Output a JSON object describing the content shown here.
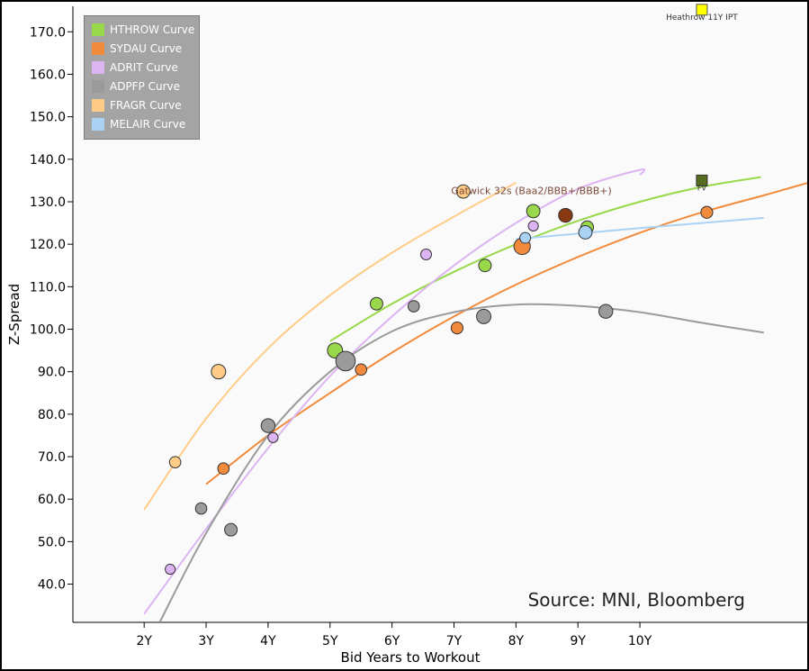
{
  "chart_data": {
    "type": "scatter",
    "xlabel": "Bid Years to Workout",
    "ylabel": "Z-Spread",
    "xlim": [
      0.85,
      12.7
    ],
    "ylim": [
      31,
      176
    ],
    "x_ticks": [
      2,
      3,
      4,
      5,
      6,
      7,
      8,
      9,
      10
    ],
    "x_tick_labels": [
      "2Y",
      "3Y",
      "4Y",
      "5Y",
      "6Y",
      "7Y",
      "8Y",
      "9Y",
      "10Y"
    ],
    "y_ticks": [
      40,
      50,
      60,
      70,
      80,
      90,
      100,
      110,
      120,
      130,
      140,
      150,
      160,
      170
    ],
    "y_tick_labels": [
      "40.0",
      "50.0",
      "60.0",
      "70.0",
      "80.0",
      "90.0",
      "100.0",
      "110.0",
      "120.0",
      "130.0",
      "140.0",
      "150.0",
      "160.0",
      "170.0"
    ],
    "legend_position": "top-left",
    "source_note": "Source: MNI, Bloomberg",
    "series": [
      {
        "name": "HTHROW Curve",
        "color": "#99d84a",
        "points": [
          {
            "x": 5.08,
            "y": 95.0,
            "s": 1.2
          },
          {
            "x": 5.75,
            "y": 106.0,
            "s": 1
          },
          {
            "x": 7.5,
            "y": 115.0,
            "s": 1
          },
          {
            "x": 8.28,
            "y": 127.8,
            "s": 1.05
          },
          {
            "x": 9.15,
            "y": 124.0,
            "s": 1
          }
        ],
        "curve": [
          [
            5.0,
            97.2
          ],
          [
            6.0,
            106
          ],
          [
            7.0,
            113.5
          ],
          [
            8.0,
            120
          ],
          [
            9.0,
            125.5
          ],
          [
            10.0,
            130
          ],
          [
            11.0,
            133.5
          ],
          [
            11.95,
            135.8
          ]
        ]
      },
      {
        "name": "SYDAU Curve",
        "color": "#f28a3c",
        "points": [
          {
            "x": 3.28,
            "y": 67.2,
            "s": 0.9
          },
          {
            "x": 5.5,
            "y": 90.5,
            "s": 0.9
          },
          {
            "x": 7.05,
            "y": 100.3,
            "s": 0.95
          },
          {
            "x": 8.1,
            "y": 119.5,
            "s": 1.3
          },
          {
            "x": 11.08,
            "y": 127.5,
            "s": 0.95
          }
        ],
        "curve": [
          [
            3.0,
            63.5
          ],
          [
            4.0,
            75
          ],
          [
            5.0,
            85
          ],
          [
            6.0,
            94.5
          ],
          [
            7.0,
            103
          ],
          [
            8.0,
            110.5
          ],
          [
            9.0,
            117
          ],
          [
            10.0,
            122.7
          ],
          [
            11.0,
            127.5
          ],
          [
            12.0,
            131.5
          ],
          [
            12.7,
            134.4
          ]
        ]
      },
      {
        "name": "ADRIT Curve",
        "color": "#dcb4f2",
        "points": [
          {
            "x": 2.42,
            "y": 43.5,
            "s": 0.8
          },
          {
            "x": 4.08,
            "y": 74.5,
            "s": 0.8
          },
          {
            "x": 6.55,
            "y": 117.6,
            "s": 0.85
          },
          {
            "x": 8.28,
            "y": 124.3,
            "s": 0.8
          }
        ],
        "curve": [
          [
            2.0,
            33
          ],
          [
            3.0,
            53
          ],
          [
            4.0,
            72
          ],
          [
            5.0,
            89
          ],
          [
            6.0,
            103
          ],
          [
            7.0,
            115
          ],
          [
            8.0,
            125
          ],
          [
            9.0,
            133
          ],
          [
            10.0,
            137.5
          ],
          [
            10.0,
            136.3
          ]
        ]
      },
      {
        "name": "ADPFP Curve",
        "color": "#9b9b9b",
        "points": [
          {
            "x": 2.92,
            "y": 57.8,
            "s": 0.9
          },
          {
            "x": 3.4,
            "y": 52.8,
            "s": 1
          },
          {
            "x": 4.0,
            "y": 77.3,
            "s": 1.1
          },
          {
            "x": 5.25,
            "y": 92.5,
            "s": 1.55
          },
          {
            "x": 6.35,
            "y": 105.4,
            "s": 0.9
          },
          {
            "x": 7.48,
            "y": 103.0,
            "s": 1.15
          },
          {
            "x": 9.45,
            "y": 104.2,
            "s": 1.1
          }
        ],
        "curve": [
          [
            2.25,
            31
          ],
          [
            3.0,
            52
          ],
          [
            4.0,
            75
          ],
          [
            5.0,
            90
          ],
          [
            6.0,
            99.5
          ],
          [
            7.0,
            104
          ],
          [
            8.0,
            105.8
          ],
          [
            9.0,
            105.5
          ],
          [
            10.0,
            104
          ],
          [
            11.0,
            101.5
          ],
          [
            12.0,
            99.2
          ]
        ]
      },
      {
        "name": "FRAGR Curve",
        "color": "#ffcc88",
        "points": [
          {
            "x": 2.5,
            "y": 68.7,
            "s": 0.9
          },
          {
            "x": 3.2,
            "y": 90.0,
            "s": 1.15
          },
          {
            "x": 7.15,
            "y": 132.4,
            "s": 1.05
          }
        ],
        "curve": [
          [
            2.0,
            57.5
          ],
          [
            3.0,
            79
          ],
          [
            4.0,
            95.5
          ],
          [
            5.0,
            108
          ],
          [
            6.0,
            118
          ],
          [
            7.0,
            126.5
          ],
          [
            8.0,
            134.5
          ]
        ]
      },
      {
        "name": "MELAIR Curve",
        "color": "#a9d2f5",
        "points": [
          {
            "x": 8.15,
            "y": 121.5,
            "s": 0.85
          },
          {
            "x": 9.12,
            "y": 122.8,
            "s": 1.05
          }
        ],
        "curve": [
          [
            8.0,
            121.2
          ],
          [
            9.0,
            122.5
          ],
          [
            10.0,
            123.8
          ],
          [
            11.0,
            125.0
          ],
          [
            12.0,
            126.2
          ]
        ]
      },
      {
        "name": "",
        "color": "#8a3a12",
        "legend": false,
        "points": [
          {
            "x": 8.8,
            "y": 126.8,
            "s": 1.1
          }
        ]
      }
    ],
    "annotations": [
      {
        "text": "Gatwick 32s (Baa2/BBB+/BBB+)",
        "x": 8.25,
        "y": 131.8,
        "color": "#7b4b3a"
      },
      {
        "text": "FV",
        "x": 11.0,
        "y": 132.6,
        "color": "#333"
      },
      {
        "text": "Heathrow 11Y IPT",
        "x": 11.0,
        "y": 172.8,
        "color": "#333"
      }
    ],
    "markers": [
      {
        "label": "Heathrow 11Y IPT",
        "x": 11.0,
        "y": 175.2,
        "fill": "#ffff00",
        "stroke": "#555"
      },
      {
        "label": "FV",
        "x": 11.0,
        "y": 135.0,
        "fill": "#556b1f",
        "stroke": "#333"
      }
    ]
  }
}
